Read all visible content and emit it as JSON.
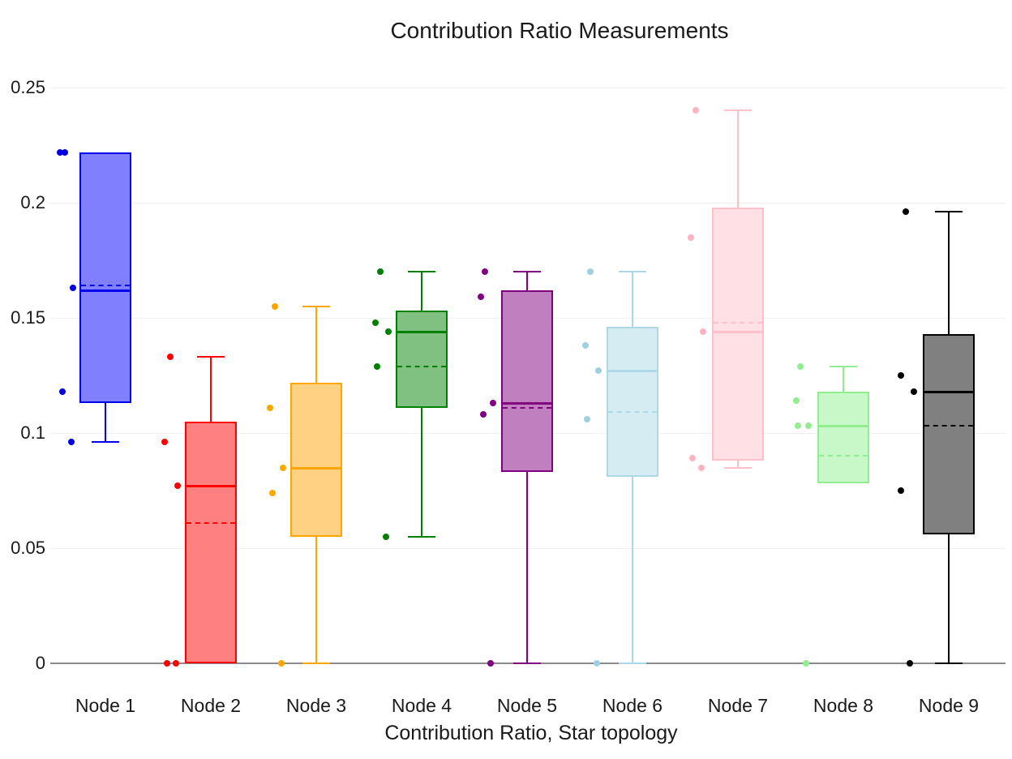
{
  "title": "Contribution Ratio Measurements",
  "xlabel": "Contribution Ratio, Star topology",
  "chart_data": {
    "type": "box",
    "title": "Contribution Ratio Measurements",
    "xlabel": "Contribution Ratio, Star topology",
    "ylabel": "",
    "ylim": [
      0,
      0.25
    ],
    "yticks": [
      0,
      0.05,
      0.1,
      0.15,
      0.2,
      0.25
    ],
    "ytick_labels": [
      "0",
      "0.05",
      "0.1",
      "0.15",
      "0.2",
      "0.25"
    ],
    "grid": "horizontal",
    "legend": "none",
    "categories": [
      "Node 1",
      "Node 2",
      "Node 3",
      "Node 4",
      "Node 5",
      "Node 6",
      "Node 7",
      "Node 8",
      "Node 9"
    ],
    "series": [
      {
        "name": "Node 1",
        "color": "#0000ee",
        "fill": "#8080ff",
        "point_color": "#0000dd",
        "q1": 0.113,
        "median": 0.162,
        "mean": 0.164,
        "q3": 0.222,
        "whisker_low": 0.096,
        "whisker_high": null,
        "points": [
          0.222,
          0.222,
          0.163,
          0.118,
          0.096
        ],
        "point_dx": [
          -56,
          -50,
          -40,
          -53,
          -42
        ]
      },
      {
        "name": "Node 2",
        "color": "#ff0000",
        "fill": "#ff8080",
        "point_color": "#ff0000",
        "q1": 0,
        "median": 0.077,
        "mean": 0.061,
        "q3": 0.105,
        "whisker_low": null,
        "whisker_high": 0.133,
        "points": [
          0.133,
          0.096,
          0.077,
          0,
          0
        ],
        "point_dx": [
          -50,
          -57,
          -41,
          -54,
          -43
        ]
      },
      {
        "name": "Node 3",
        "color": "#ffa500",
        "fill": "#ffd283",
        "point_color": "#ffa500",
        "q1": 0.055,
        "median": 0.085,
        "mean": 0.085,
        "q3": 0.122,
        "whisker_low": 0,
        "whisker_high": 0.155,
        "points": [
          0.155,
          0.111,
          0.085,
          0.074,
          0
        ],
        "point_dx": [
          -51,
          -57,
          -41,
          -54,
          -43
        ]
      },
      {
        "name": "Node 4",
        "color": "#008000",
        "fill": "#80c080",
        "point_color": "#008000",
        "q1": 0.111,
        "median": 0.144,
        "mean": 0.129,
        "q3": 0.153,
        "whisker_low": 0.055,
        "whisker_high": 0.17,
        "points": [
          0.17,
          0.148,
          0.144,
          0.129,
          0.055
        ],
        "point_dx": [
          -51,
          -57,
          -41,
          -55,
          -44
        ]
      },
      {
        "name": "Node 5",
        "color": "#800080",
        "fill": "#c080c0",
        "point_color": "#800080",
        "q1": 0.083,
        "median": 0.113,
        "mean": 0.111,
        "q3": 0.162,
        "whisker_low": 0,
        "whisker_high": 0.17,
        "points": [
          0.17,
          0.159,
          0.113,
          0.108,
          0
        ],
        "point_dx": [
          -52,
          -57,
          -42,
          -54,
          -45
        ]
      },
      {
        "name": "Node 6",
        "color": "#add8e6",
        "fill": "#d6ecf3",
        "point_color": "#9fd0e2",
        "q1": 0.081,
        "median": 0.127,
        "mean": 0.109,
        "q3": 0.146,
        "whisker_low": 0,
        "whisker_high": 0.17,
        "points": [
          0.17,
          0.138,
          0.127,
          0.106,
          0
        ],
        "point_dx": [
          -52,
          -58,
          -42,
          -56,
          -44
        ]
      },
      {
        "name": "Node 7",
        "color": "#ffc0cb",
        "fill": "#ffe0e5",
        "point_color": "#ffb3c1",
        "q1": 0.088,
        "median": 0.144,
        "mean": 0.148,
        "q3": 0.198,
        "whisker_low": 0.085,
        "whisker_high": 0.24,
        "points": [
          0.24,
          0.185,
          0.144,
          0.089,
          0.085
        ],
        "point_dx": [
          -52,
          -58,
          -43,
          -56,
          -45
        ]
      },
      {
        "name": "Node 8",
        "color": "#90ee90",
        "fill": "#c8f7c8",
        "point_color": "#90ee90",
        "q1": 0.078,
        "median": 0.103,
        "mean": 0.09,
        "q3": 0.118,
        "whisker_low": null,
        "whisker_high": 0.129,
        "points": [
          0.129,
          0.114,
          0.103,
          0.103,
          0
        ],
        "point_dx": [
          -53,
          -58,
          -56,
          -43,
          -46
        ]
      },
      {
        "name": "Node 9",
        "color": "#000000",
        "fill": "#808080",
        "point_color": "#000000",
        "q1": 0.056,
        "median": 0.118,
        "mean": 0.103,
        "q3": 0.143,
        "whisker_low": 0,
        "whisker_high": 0.196,
        "points": [
          0.196,
          0.125,
          0.118,
          0.075,
          0
        ],
        "point_dx": [
          -53,
          -59,
          -43,
          -59,
          -48
        ]
      }
    ]
  }
}
